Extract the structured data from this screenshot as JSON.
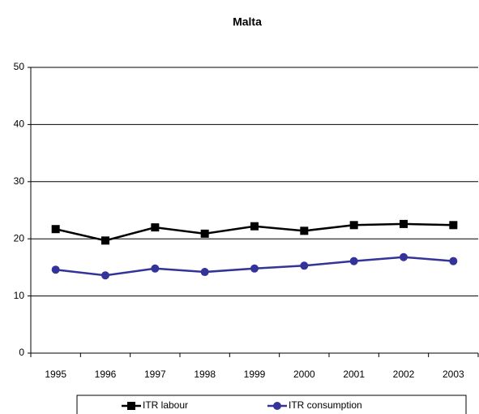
{
  "chart_data": {
    "type": "line",
    "title": "Malta",
    "categories": [
      "1995",
      "1996",
      "1997",
      "1998",
      "1999",
      "2000",
      "2001",
      "2002",
      "2003"
    ],
    "series": [
      {
        "name": "ITR labour",
        "color": "#000000",
        "marker": "square",
        "values": [
          21.7,
          19.7,
          22.0,
          20.9,
          22.2,
          21.4,
          22.4,
          22.6,
          22.4
        ]
      },
      {
        "name": "ITR consumption",
        "color": "#333399",
        "marker": "circle",
        "values": [
          14.6,
          13.6,
          14.8,
          14.2,
          14.8,
          15.3,
          16.1,
          16.8,
          16.1
        ]
      }
    ],
    "ylim": [
      0,
      50
    ],
    "yticks": [
      0,
      10,
      20,
      30,
      40,
      50
    ],
    "grid": true,
    "legend": "bottom"
  }
}
